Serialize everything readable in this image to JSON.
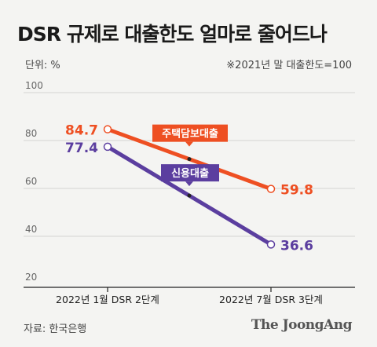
{
  "header": {
    "title": "DSR 규제로 대출한도 얼마로 줄어드나",
    "unit_label": "단위: %",
    "note": "※2021년 말 대출한도=100"
  },
  "footer": {
    "source": "자료: 한국은행",
    "brand": "The JoongAng"
  },
  "colors": {
    "mortgage": "#ee4f22",
    "credit": "#5b3e9f",
    "grid": "#d3d3d3",
    "background": "#f4f4f2"
  },
  "chart_data": {
    "type": "line",
    "x": [
      "2022년 1월 DSR 2단계",
      "2022년 7월 DSR 3단계"
    ],
    "ylim": [
      20,
      100
    ],
    "yticks": [
      20,
      40,
      60,
      80,
      100
    ],
    "grid": true,
    "series": [
      {
        "name": "주택담보대출",
        "values": [
          84.7,
          59.8
        ],
        "labels": [
          "84.7",
          "59.8"
        ],
        "color": "#ee4f22"
      },
      {
        "name": "신용대출",
        "values": [
          77.4,
          36.6
        ],
        "labels": [
          "77.4",
          "36.6"
        ],
        "color": "#5b3e9f"
      }
    ]
  }
}
